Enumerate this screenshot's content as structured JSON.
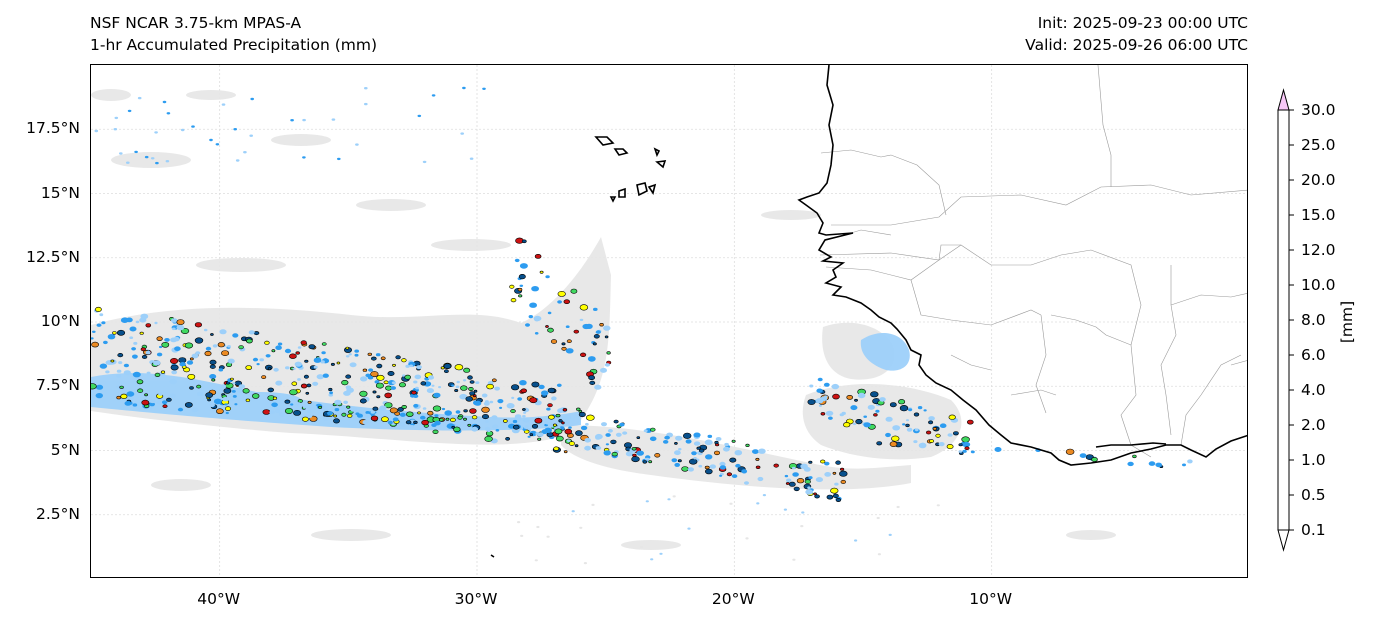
{
  "header": {
    "model": "NSF NCAR 3.75-km MPAS-A",
    "field": "1-hr Accumulated Precipitation (mm)",
    "init": "Init: 2025-09-23 00:00 UTC",
    "valid": "Valid: 2025-09-26 06:00 UTC"
  },
  "map": {
    "lon_range": [
      -45,
      0
    ],
    "lat_range": [
      0,
      20
    ],
    "lat_ticks": [
      {
        "value": 2.5,
        "label": "2.5°N"
      },
      {
        "value": 5,
        "label": "5°N"
      },
      {
        "value": 7.5,
        "label": "7.5°N"
      },
      {
        "value": 10,
        "label": "10°N"
      },
      {
        "value": 12.5,
        "label": "12.5°N"
      },
      {
        "value": 15,
        "label": "15°N"
      },
      {
        "value": 17.5,
        "label": "17.5°N"
      }
    ],
    "lon_ticks": [
      {
        "value": -40,
        "label": "40°W"
      },
      {
        "value": -30,
        "label": "30°W"
      },
      {
        "value": -20,
        "label": "20°W"
      },
      {
        "value": -10,
        "label": "10°W"
      }
    ]
  },
  "colorbar": {
    "unit": "[mm]",
    "levels": [
      "0.1",
      "0.5",
      "1.0",
      "2.0",
      "4.0",
      "6.0",
      "8.0",
      "10.0",
      "12.0",
      "15.0",
      "20.0",
      "25.0",
      "30.0"
    ],
    "colors": [
      "#e6e6e6",
      "#9dd0fa",
      "#2d9cf0",
      "#08508c",
      "#40d860",
      "#ffff00",
      "#f5b62a",
      "#eb8a22",
      "#cc1212",
      "#960000",
      "#b434b4",
      "#f8c8f8"
    ],
    "under_color": "#ffffff",
    "over_color": "#f8c8f8"
  },
  "colors": {
    "coastline": "#000000",
    "borders": "#9a9a9a",
    "gridlines": "#dddddd",
    "light_precip": "#e6e6e6"
  }
}
